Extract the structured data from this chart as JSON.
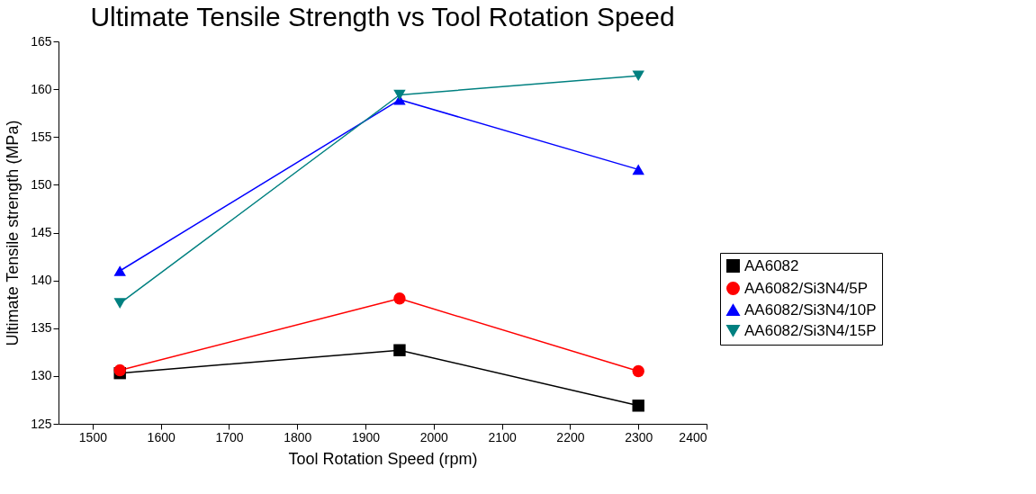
{
  "chart_data": {
    "type": "line",
    "title": "Ultimate Tensile Strength vs Tool Rotation Speed",
    "xlabel": "Tool Rotation Speed (rpm)",
    "ylabel": "Ultimate Tensile strength (MPa)",
    "x": [
      1540,
      1950,
      2300
    ],
    "series": [
      {
        "name": "AA6082",
        "color": "#000000",
        "marker": "square",
        "values": [
          130.3,
          132.7,
          126.9
        ]
      },
      {
        "name": "AA6082/Si3N4/5P",
        "color": "#ff0000",
        "marker": "circle",
        "values": [
          130.6,
          138.1,
          130.5
        ]
      },
      {
        "name": "AA6082/Si3N4/10P",
        "color": "#0000ff",
        "marker": "triangle",
        "values": [
          141.0,
          158.9,
          151.6
        ]
      },
      {
        "name": "AA6082/Si3N4/15P",
        "color": "#008080",
        "marker": "triangle-down",
        "values": [
          137.6,
          159.4,
          161.4
        ]
      }
    ],
    "xlim": [
      1450,
      2400
    ],
    "xticks": [
      1500,
      1600,
      1700,
      1800,
      1900,
      2000,
      2100,
      2200,
      2300,
      2400
    ],
    "ylim": [
      125,
      165
    ],
    "yticks": [
      125,
      130,
      135,
      140,
      145,
      150,
      155,
      160,
      165
    ],
    "grid": false,
    "legend": "right",
    "line_style": "solid"
  }
}
